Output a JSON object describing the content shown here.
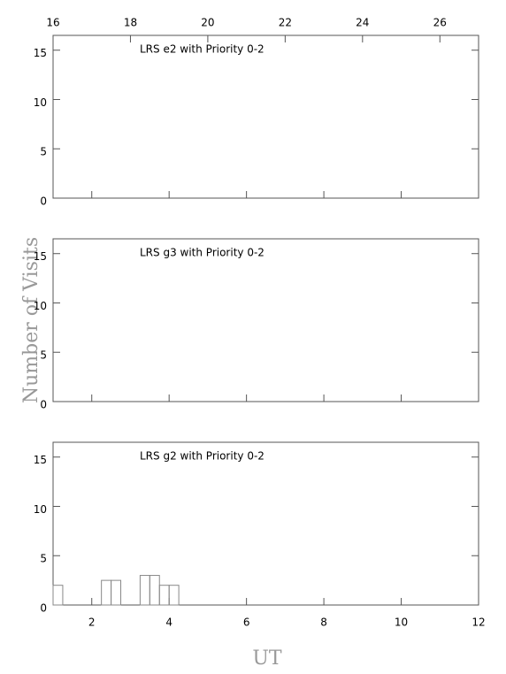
{
  "chart_data": [
    {
      "type": "histogram",
      "title": "LRS e2 with Priority 0-2",
      "ylim": [
        0,
        16.5
      ],
      "yticks": [
        0,
        5,
        10,
        15
      ],
      "x2lim": [
        16,
        27
      ],
      "x2ticks": [
        16,
        18,
        20,
        22,
        24,
        26
      ]
    },
    {
      "type": "histogram",
      "title": "LRS g3 with Priority 0-2",
      "ylim": [
        0,
        16.5
      ],
      "yticks": [
        0,
        5,
        10,
        15
      ],
      "ylabel": "Number of Visits"
    },
    {
      "type": "histogram",
      "title": "LRS g2 with Priority 0-2",
      "ylim": [
        0,
        16.5
      ],
      "yticks": [
        0,
        5,
        10,
        15
      ],
      "xlim": [
        1,
        12
      ],
      "xticks": [
        2,
        4,
        6,
        8,
        10,
        12
      ],
      "xlabel": "UT",
      "bins": [
        1,
        1.25,
        1.5,
        1.75,
        2,
        2.25,
        2.5,
        2.75,
        3,
        3.25,
        3.5,
        3.75,
        4,
        4.25
      ],
      "values": [
        2,
        0,
        0,
        0,
        0,
        2.5,
        2.5,
        0,
        0,
        3,
        3,
        2,
        2
      ],
      "color": "#888888"
    }
  ]
}
